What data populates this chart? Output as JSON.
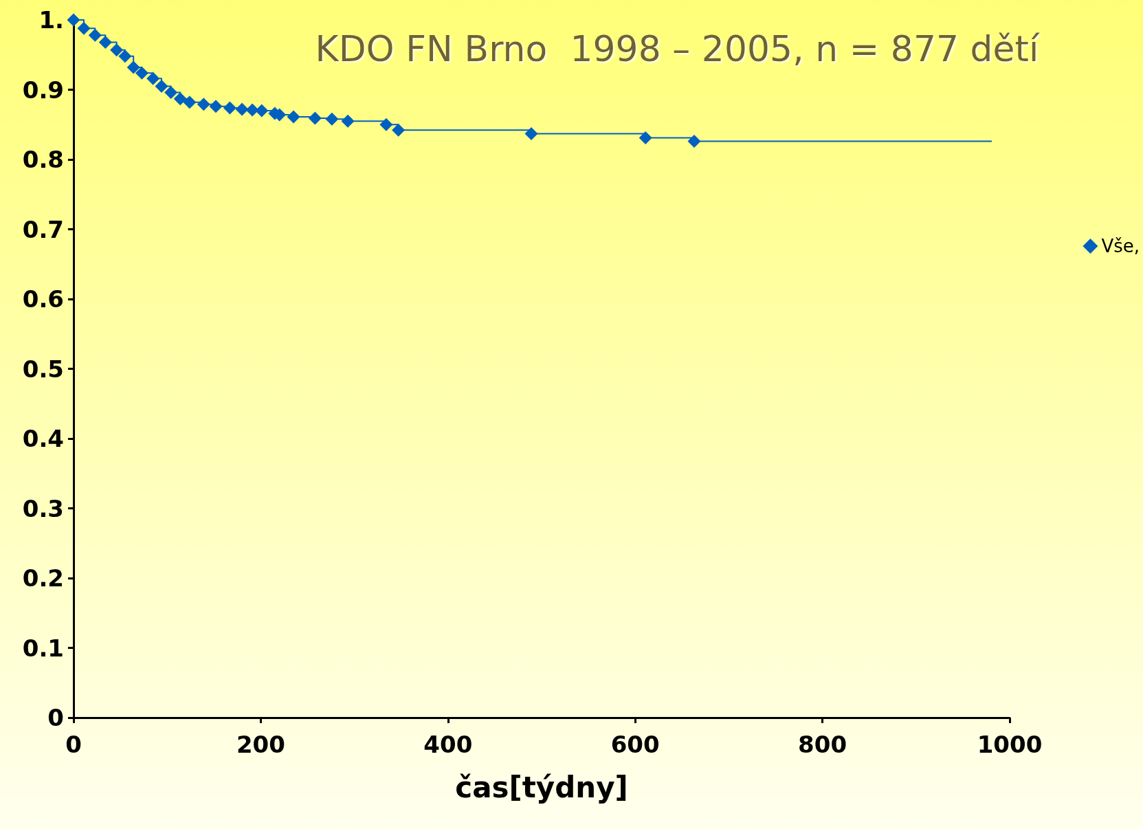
{
  "chart_data": {
    "type": "step",
    "title": "KDO FN Brno  1998 – 2005, n = 877 dětí",
    "xlabel": "čas[týdny]",
    "xlim": [
      0,
      1000
    ],
    "xticks": [
      0,
      200,
      400,
      600,
      800,
      1000
    ],
    "ylim": [
      0,
      1
    ],
    "yticks": [
      0,
      0.1,
      0.2,
      0.3,
      0.4,
      0.5,
      0.6,
      0.7,
      0.8,
      0.9,
      {
        "value": 1,
        "label": "1."
      }
    ],
    "grid": false,
    "legend": "right",
    "marker": "diamond",
    "line_style": "solid",
    "series": [
      {
        "name": "Vše,",
        "color": "#0060c0",
        "x": [
          0,
          11,
          23,
          34,
          46,
          55,
          64,
          73,
          85,
          94,
          104,
          114,
          124,
          139,
          152,
          167,
          180,
          191,
          201,
          215,
          220,
          235,
          258,
          276,
          293,
          334,
          347,
          489,
          611,
          663
        ],
        "values": [
          1.0,
          0.988,
          0.978,
          0.968,
          0.957,
          0.948,
          0.932,
          0.924,
          0.916,
          0.905,
          0.896,
          0.887,
          0.882,
          0.879,
          0.876,
          0.874,
          0.872,
          0.871,
          0.87,
          0.866,
          0.864,
          0.861,
          0.859,
          0.858,
          0.855,
          0.85,
          0.842,
          0.837,
          0.831,
          0.826
        ]
      },
      {
        "color": "#0060c0",
        "marker": "none",
        "x": [
          663,
          981
        ],
        "values": [
          0.826,
          0.826
        ]
      }
    ]
  }
}
